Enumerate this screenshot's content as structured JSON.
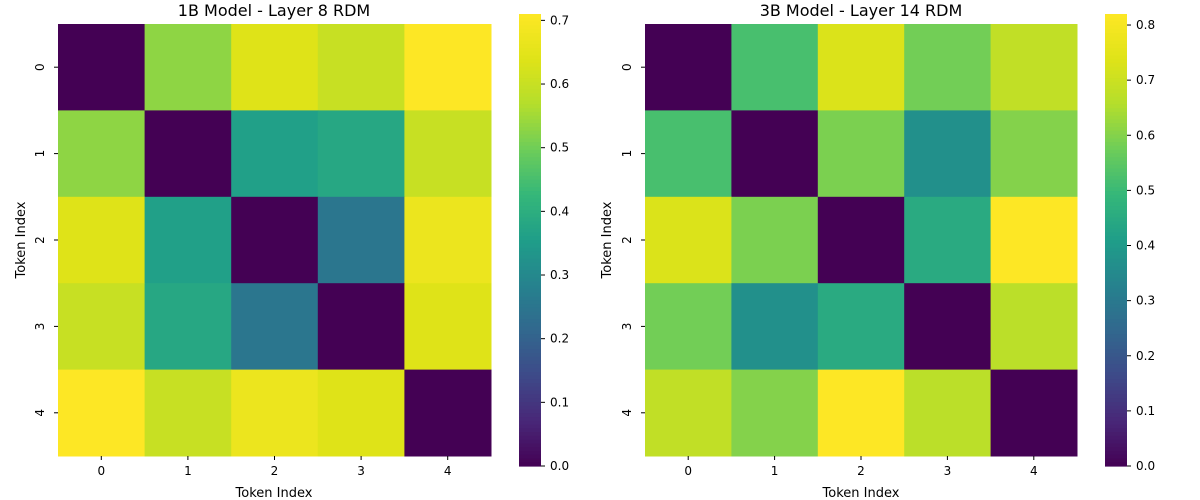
{
  "chart_data": [
    {
      "type": "heatmap",
      "title": "1B Model - Layer 8 RDM",
      "xlabel": "Token Index",
      "ylabel": "Token Index",
      "x_categories": [
        "0",
        "1",
        "2",
        "3",
        "4"
      ],
      "y_categories": [
        "0",
        "1",
        "2",
        "3",
        "4"
      ],
      "values": [
        [
          0.0,
          0.53,
          0.64,
          0.6,
          0.71
        ],
        [
          0.53,
          0.0,
          0.36,
          0.38,
          0.6
        ],
        [
          0.64,
          0.36,
          0.0,
          0.25,
          0.67
        ],
        [
          0.6,
          0.38,
          0.25,
          0.0,
          0.64
        ],
        [
          0.71,
          0.6,
          0.67,
          0.64,
          0.0
        ]
      ],
      "colormap": "viridis",
      "vmin": 0.0,
      "vmax": 0.71,
      "colorbar_ticks": [
        "0.0",
        "0.1",
        "0.2",
        "0.3",
        "0.4",
        "0.5",
        "0.6",
        "0.7"
      ],
      "colorbar_tick_values": [
        0.0,
        0.1,
        0.2,
        0.3,
        0.4,
        0.5,
        0.6,
        0.7
      ]
    },
    {
      "type": "heatmap",
      "title": "3B Model - Layer 14 RDM",
      "xlabel": "Token Index",
      "ylabel": "Token Index",
      "x_categories": [
        "0",
        "1",
        "2",
        "3",
        "4"
      ],
      "y_categories": [
        "0",
        "1",
        "2",
        "3",
        "4"
      ],
      "values": [
        [
          0.0,
          0.52,
          0.73,
          0.58,
          0.68
        ],
        [
          0.52,
          0.0,
          0.59,
          0.37,
          0.6
        ],
        [
          0.73,
          0.59,
          0.0,
          0.45,
          0.82
        ],
        [
          0.58,
          0.37,
          0.45,
          0.0,
          0.67
        ],
        [
          0.68,
          0.6,
          0.82,
          0.67,
          0.0
        ]
      ],
      "colormap": "viridis",
      "vmin": 0.0,
      "vmax": 0.82,
      "colorbar_ticks": [
        "0.0",
        "0.1",
        "0.2",
        "0.3",
        "0.4",
        "0.5",
        "0.6",
        "0.7",
        "0.8"
      ],
      "colorbar_tick_values": [
        0.0,
        0.1,
        0.2,
        0.3,
        0.4,
        0.5,
        0.6,
        0.7,
        0.8
      ]
    }
  ]
}
